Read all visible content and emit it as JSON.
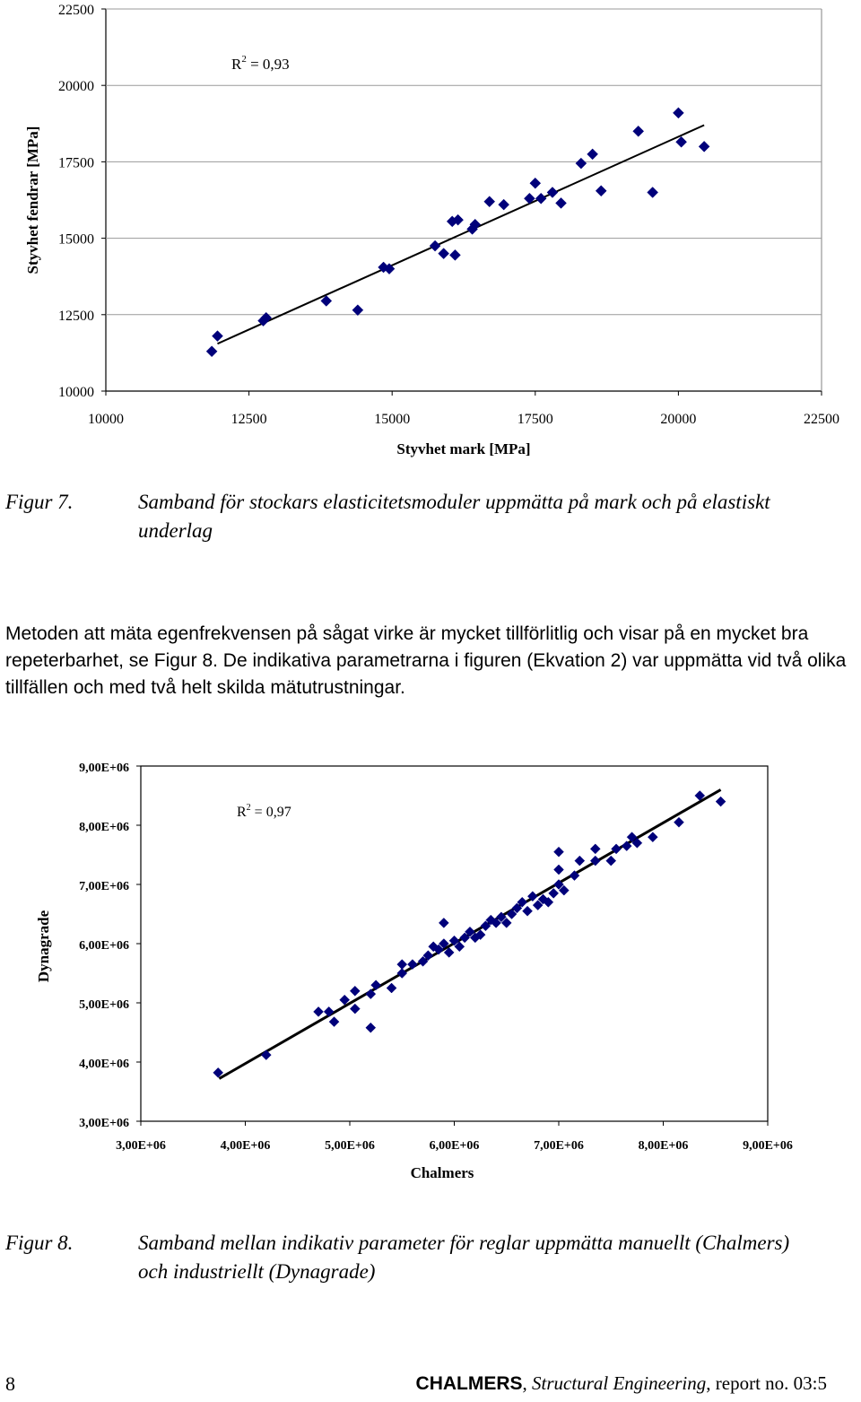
{
  "chart_data": [
    {
      "type": "scatter",
      "xlabel": "Styvhet mark [MPa]",
      "ylabel": "Styvhet fendrar [MPa]",
      "xlim": [
        10000,
        22500
      ],
      "ylim": [
        10000,
        22500
      ],
      "xticks": [
        "10000",
        "12500",
        "15000",
        "17500",
        "20000",
        "22500"
      ],
      "yticks": [
        "10000",
        "12500",
        "15000",
        "17500",
        "20000",
        "22500"
      ],
      "annotation": {
        "r": "R",
        "sup": "2",
        "eq": " = 0,93"
      },
      "marker_color": "#00007a",
      "trendline": {
        "x1": 11950,
        "y1": 11550,
        "x2": 20450,
        "y2": 18700
      },
      "points": [
        [
          11850,
          11300
        ],
        [
          11950,
          11800
        ],
        [
          12750,
          12300
        ],
        [
          12800,
          12400
        ],
        [
          13850,
          12950
        ],
        [
          14400,
          12650
        ],
        [
          14850,
          14050
        ],
        [
          14950,
          14000
        ],
        [
          15750,
          14750
        ],
        [
          15900,
          14500
        ],
        [
          16050,
          15550
        ],
        [
          16150,
          15600
        ],
        [
          16100,
          14450
        ],
        [
          16400,
          15300
        ],
        [
          16450,
          15450
        ],
        [
          16700,
          16200
        ],
        [
          16950,
          16100
        ],
        [
          17400,
          16300
        ],
        [
          17500,
          16800
        ],
        [
          17600,
          16300
        ],
        [
          17800,
          16500
        ],
        [
          17950,
          16150
        ],
        [
          18300,
          17450
        ],
        [
          18500,
          17750
        ],
        [
          18650,
          16550
        ],
        [
          19300,
          18500
        ],
        [
          19550,
          16500
        ],
        [
          20000,
          19100
        ],
        [
          20050,
          18150
        ],
        [
          20450,
          18000
        ]
      ]
    },
    {
      "type": "scatter",
      "xlabel": "Chalmers",
      "ylabel": "Dynagrade",
      "xlim": [
        3000000,
        9000000
      ],
      "ylim": [
        3000000,
        9000000
      ],
      "xticks": [
        "3,00E+06",
        "4,00E+06",
        "5,00E+06",
        "6,00E+06",
        "7,00E+06",
        "8,00E+06",
        "9,00E+06"
      ],
      "yticks": [
        "3,00E+06",
        "4,00E+06",
        "5,00E+06",
        "6,00E+06",
        "7,00E+06",
        "8,00E+06",
        "9,00E+06"
      ],
      "annotation": {
        "r": "R",
        "sup": "2",
        "eq": " = 0,97"
      },
      "marker_color": "#00007a",
      "trendline": {
        "x1": 3750000,
        "y1": 3720000,
        "x2": 8550000,
        "y2": 8600000
      },
      "points": [
        [
          3740000,
          3820000
        ],
        [
          4200000,
          4120000
        ],
        [
          4700000,
          4850000
        ],
        [
          4800000,
          4850000
        ],
        [
          4850000,
          4680000
        ],
        [
          4950000,
          5050000
        ],
        [
          5050000,
          4900000
        ],
        [
          5050000,
          5200000
        ],
        [
          5200000,
          4580000
        ],
        [
          5200000,
          5150000
        ],
        [
          5250000,
          5300000
        ],
        [
          5400000,
          5250000
        ],
        [
          5500000,
          5500000
        ],
        [
          5500000,
          5650000
        ],
        [
          5600000,
          5650000
        ],
        [
          5700000,
          5700000
        ],
        [
          5750000,
          5800000
        ],
        [
          5800000,
          5950000
        ],
        [
          5850000,
          5900000
        ],
        [
          5900000,
          6000000
        ],
        [
          5900000,
          6350000
        ],
        [
          5950000,
          5850000
        ],
        [
          6000000,
          6050000
        ],
        [
          6050000,
          5950000
        ],
        [
          6100000,
          6100000
        ],
        [
          6150000,
          6200000
        ],
        [
          6200000,
          6100000
        ],
        [
          6250000,
          6150000
        ],
        [
          6300000,
          6300000
        ],
        [
          6350000,
          6400000
        ],
        [
          6400000,
          6350000
        ],
        [
          6450000,
          6450000
        ],
        [
          6500000,
          6350000
        ],
        [
          6550000,
          6500000
        ],
        [
          6600000,
          6600000
        ],
        [
          6650000,
          6700000
        ],
        [
          6700000,
          6550000
        ],
        [
          6750000,
          6800000
        ],
        [
          6800000,
          6650000
        ],
        [
          6850000,
          6750000
        ],
        [
          6900000,
          6700000
        ],
        [
          6950000,
          6850000
        ],
        [
          7000000,
          7000000
        ],
        [
          7000000,
          7250000
        ],
        [
          7000000,
          7550000
        ],
        [
          7050000,
          6900000
        ],
        [
          7150000,
          7150000
        ],
        [
          7200000,
          7400000
        ],
        [
          7350000,
          7400000
        ],
        [
          7350000,
          7600000
        ],
        [
          7500000,
          7400000
        ],
        [
          7550000,
          7600000
        ],
        [
          7650000,
          7650000
        ],
        [
          7700000,
          7800000
        ],
        [
          7750000,
          7700000
        ],
        [
          7900000,
          7800000
        ],
        [
          8150000,
          8050000
        ],
        [
          8350000,
          8500000
        ],
        [
          8550000,
          8400000
        ]
      ]
    }
  ],
  "figure7_caption": {
    "number": "Figur 7.",
    "line1": "Samband för stockars elasticitetsmoduler uppmätta på mark och på elastiskt",
    "line2": "underlag"
  },
  "body": {
    "paragraph": "Metoden att mäta egenfrekvensen på sågat virke är mycket tillförlitlig och visar på en mycket bra repeterbarhet, se Figur 8. De indikativa parametrarna i figuren (Ekvation 2) var uppmätta vid två olika tillfällen och med två helt skilda mätutrustningar."
  },
  "figure8_caption": {
    "number": "Figur 8.",
    "line1": "Samband mellan indikativ parameter för reglar uppmätta manuellt (Chalmers)",
    "line2": "och industriellt (Dynagrade)"
  },
  "footer": {
    "page_number": "8",
    "org": "CHALMERS",
    "separator": ", ",
    "series": "Structural Engineering",
    "report": ", report no. 03:5"
  }
}
